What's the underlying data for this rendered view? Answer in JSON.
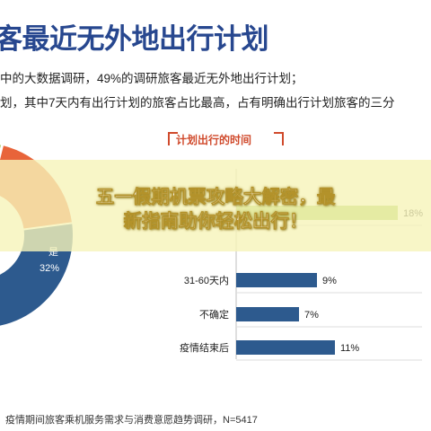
{
  "title": "客最近无外地出行计划",
  "desc": {
    "line1": "中的大数据调研，49%的调研旅客最近无外地出行计划；",
    "line2": "划，其中7天内有出行计划的旅客占比最高，占有明确出行计划旅客的三分"
  },
  "overlay": {
    "line1": "五一假期机票攻略大解密，最",
    "line2": "新指南助你轻松出行！"
  },
  "source": "疫情期间旅客乘机服务需求与消费意愿趋势调研，N=5417",
  "chart_data": [
    {
      "type": "pie",
      "labels": [
        "是"
      ],
      "slices": [
        {
          "label": "是",
          "value": 32,
          "value_label": "32%",
          "color": "#2d5a8e"
        },
        {
          "label": "",
          "value": 49,
          "color": "#9ec64a"
        },
        {
          "label": "",
          "value": 19,
          "color": "#e8643a"
        }
      ]
    },
    {
      "type": "bar",
      "title": "计划出行的时间",
      "categories": [
        "",
        "31-60天内",
        "不确定",
        "疫情结束后"
      ],
      "values": [
        18,
        9,
        7,
        11
      ],
      "value_labels": [
        "18%",
        "9%",
        "7%",
        "11%"
      ],
      "colors": {
        "first_bar": "#9ec64a",
        "bars": "#2d5a8e",
        "gridline": "#dddddd"
      }
    }
  ]
}
